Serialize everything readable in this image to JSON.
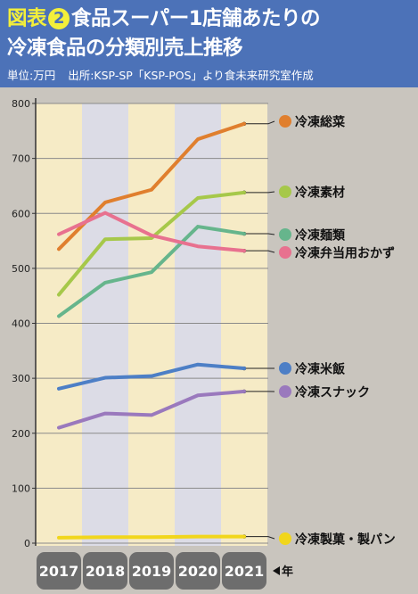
{
  "header": {
    "figure_label": "図表",
    "figure_number": "2",
    "title_line1": "食品スーパー1店舗あたりの",
    "title_line2": "冷凍食品の分類別売上推移",
    "unit": "単位:万円",
    "source": "出所:KSP-SP「KSP-POS」より食未来研究室作成"
  },
  "chart_data": {
    "type": "line",
    "x": [
      "2017",
      "2018",
      "2019",
      "2020",
      "2021"
    ],
    "x_unit_label": "年",
    "ylim": [
      0,
      800
    ],
    "yticks": [
      0,
      100,
      200,
      300,
      400,
      500,
      600,
      700,
      800
    ],
    "grid": true,
    "legend": "right",
    "series": [
      {
        "name": "冷凍総菜",
        "color": "#e07f2e",
        "values": [
          535,
          620,
          643,
          735,
          763
        ]
      },
      {
        "name": "冷凍素材",
        "color": "#a6c84a",
        "values": [
          452,
          553,
          555,
          628,
          638
        ]
      },
      {
        "name": "冷凍麺類",
        "color": "#66b58c",
        "values": [
          413,
          474,
          493,
          576,
          563
        ]
      },
      {
        "name": "冷凍弁当用おかず",
        "color": "#e8718f",
        "values": [
          562,
          601,
          560,
          540,
          532
        ]
      },
      {
        "name": "冷凍米飯",
        "color": "#4d7fc6",
        "values": [
          281,
          301,
          304,
          325,
          318
        ]
      },
      {
        "name": "冷凍スナック",
        "color": "#9a79bd",
        "values": [
          210,
          236,
          233,
          269,
          276
        ]
      },
      {
        "name": "冷凍製菓・製パン",
        "color": "#f1d61c",
        "values": [
          10,
          11,
          11,
          12,
          12
        ]
      }
    ]
  }
}
